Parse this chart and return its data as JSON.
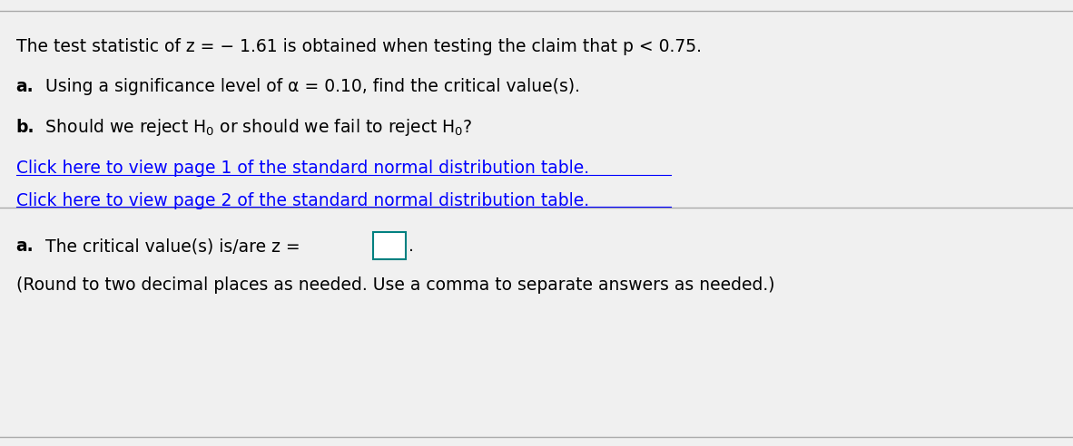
{
  "bg_color": "#f0f0f0",
  "content_bg": "#ffffff",
  "line1": "The test statistic of z = − 1.61 is obtained when testing the claim that p < 0.75.",
  "line2_bold": "a.",
  "line2_rest": " Using a significance level of α = 0.10, find the critical value(s).",
  "line3_bold": "b.",
  "link1": "Click here to view page 1 of the standard normal distribution table.",
  "link2": "Click here to view page 2 of the standard normal distribution table.",
  "answer_bold": "a.",
  "answer_rest": " The critical value(s) is/are z = ",
  "answer_note": "(Round to two decimal places as needed. Use a comma to separate answers as needed.)",
  "link_color": "#0000FF",
  "text_color": "#000000",
  "font_size": 13.5,
  "bold_font_size": 13.5,
  "box_color": "#008080"
}
